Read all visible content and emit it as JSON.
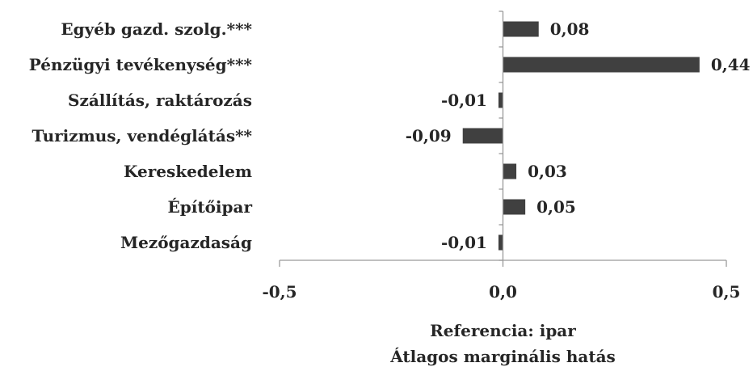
{
  "chart_data": {
    "type": "bar",
    "orientation": "horizontal",
    "categories": [
      "Egyéb gazd. szolg.***",
      "Pénzügyi tevékenység***",
      "Szállítás, raktározás",
      "Turizmus, vendéglátás**",
      "Kereskedelem",
      "Építőipar",
      "Mezőgazdaság"
    ],
    "values": [
      0.08,
      0.44,
      -0.01,
      -0.09,
      0.03,
      0.05,
      -0.01
    ],
    "value_labels": [
      "0,08",
      "0,44",
      "-0,01",
      "-0,09",
      "0,03",
      "0,05",
      "-0,01"
    ],
    "xlim": [
      -0.5,
      0.5
    ],
    "xticks": [
      -0.5,
      0.0,
      0.5
    ],
    "xtick_labels": [
      "-0,5",
      "0,0",
      "0,5"
    ],
    "xlabel_lines": [
      "Referencia: ipar",
      "Átlagos marginális hatás"
    ],
    "grid": false,
    "legend": "none",
    "bar_color": "#404040"
  }
}
